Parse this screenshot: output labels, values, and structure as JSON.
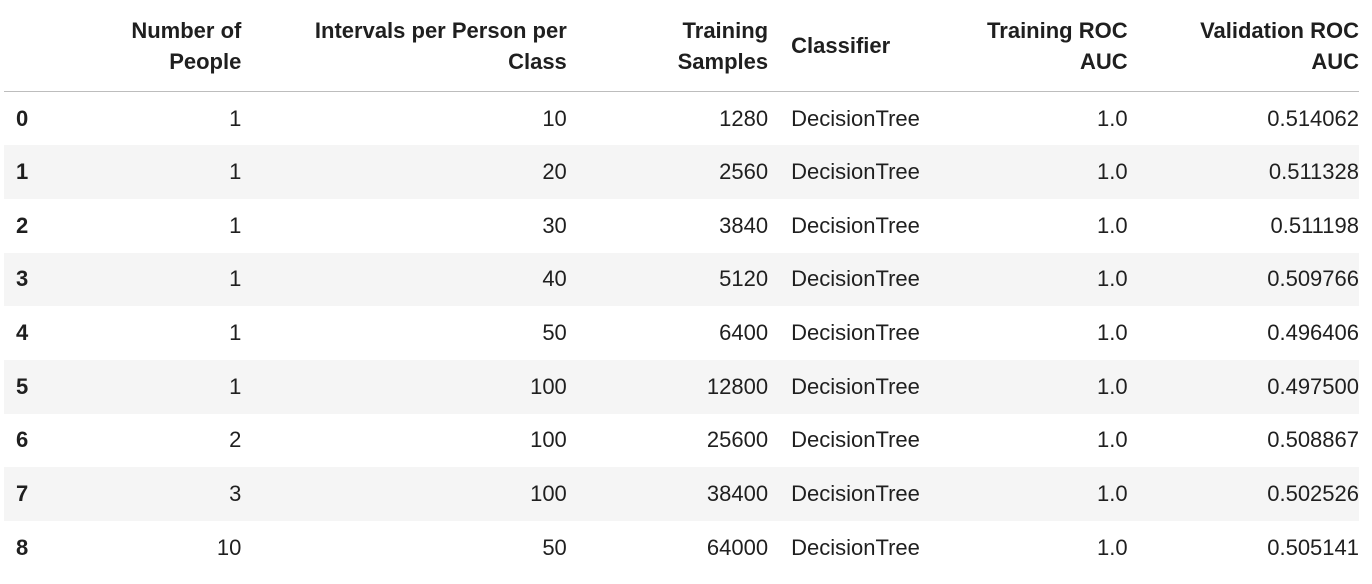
{
  "table": {
    "columns": [
      "Number of People",
      "Intervals per Person per Class",
      "Training Samples",
      "Classifier",
      "Training ROC AUC",
      "Validation ROC AUC"
    ],
    "rows": [
      {
        "index": "0",
        "people": "1",
        "intervals": "10",
        "samples": "1280",
        "classifier": "DecisionTree",
        "train_auc": "1.0",
        "val_auc": "0.514062"
      },
      {
        "index": "1",
        "people": "1",
        "intervals": "20",
        "samples": "2560",
        "classifier": "DecisionTree",
        "train_auc": "1.0",
        "val_auc": "0.511328"
      },
      {
        "index": "2",
        "people": "1",
        "intervals": "30",
        "samples": "3840",
        "classifier": "DecisionTree",
        "train_auc": "1.0",
        "val_auc": "0.511198"
      },
      {
        "index": "3",
        "people": "1",
        "intervals": "40",
        "samples": "5120",
        "classifier": "DecisionTree",
        "train_auc": "1.0",
        "val_auc": "0.509766"
      },
      {
        "index": "4",
        "people": "1",
        "intervals": "50",
        "samples": "6400",
        "classifier": "DecisionTree",
        "train_auc": "1.0",
        "val_auc": "0.496406"
      },
      {
        "index": "5",
        "people": "1",
        "intervals": "100",
        "samples": "12800",
        "classifier": "DecisionTree",
        "train_auc": "1.0",
        "val_auc": "0.497500"
      },
      {
        "index": "6",
        "people": "2",
        "intervals": "100",
        "samples": "25600",
        "classifier": "DecisionTree",
        "train_auc": "1.0",
        "val_auc": "0.508867"
      },
      {
        "index": "7",
        "people": "3",
        "intervals": "100",
        "samples": "38400",
        "classifier": "DecisionTree",
        "train_auc": "1.0",
        "val_auc": "0.502526"
      },
      {
        "index": "8",
        "people": "10",
        "intervals": "50",
        "samples": "64000",
        "classifier": "DecisionTree",
        "train_auc": "1.0",
        "val_auc": "0.505141"
      }
    ]
  },
  "colors": {
    "row_stripe": "#f5f5f5",
    "header_rule": "#bdbdbd",
    "text": "#1f1f1f"
  }
}
